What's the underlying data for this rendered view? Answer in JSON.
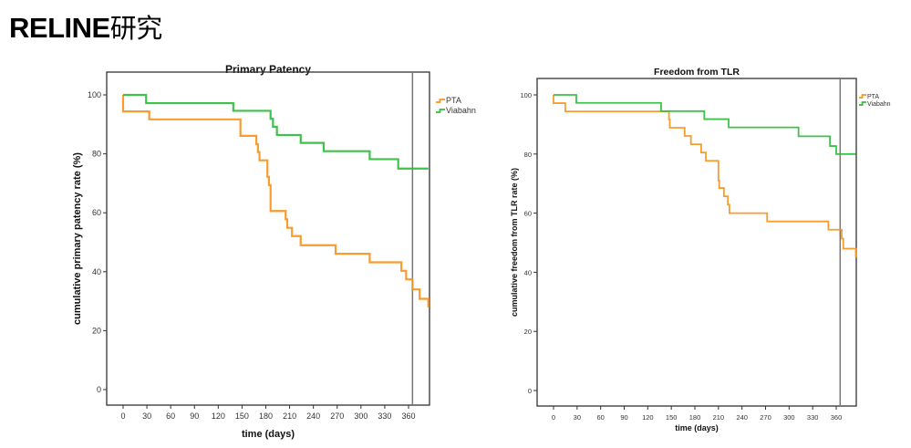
{
  "slide": {
    "title_latin": "RELINE",
    "title_cjk": "研究"
  },
  "colors": {
    "pta": "#f7941d",
    "viabahn": "#2ebd3a",
    "axis": "#333333",
    "reference_line": "#777777"
  },
  "chart_data": [
    {
      "type": "line",
      "subtype": "kaplan-meier step",
      "title": "Primary Patency",
      "xlabel": "time (days)",
      "ylabel": "cumulative primary patency rate (%)",
      "xlim": [
        -20,
        385
      ],
      "ylim": [
        -5,
        105
      ],
      "xticks": [
        0,
        30,
        60,
        90,
        120,
        150,
        180,
        210,
        240,
        270,
        300,
        330,
        360
      ],
      "yticks": [
        0,
        20,
        40,
        60,
        80,
        100
      ],
      "reference_line_x": 365,
      "grid": false,
      "legend": {
        "placement": "right-top",
        "entries": [
          "PTA",
          "Viabahn"
        ]
      },
      "series": [
        {
          "name": "PTA",
          "x": [
            0,
            0,
            33,
            148,
            168,
            170,
            172,
            182,
            184,
            186,
            205,
            207,
            213,
            224,
            268,
            311,
            351,
            357,
            365,
            374,
            385
          ],
          "y": [
            100,
            94.4,
            91.7,
            86.1,
            83.3,
            80.6,
            77.8,
            72.2,
            69.4,
            60.6,
            57.8,
            54.9,
            52.1,
            49.0,
            46.1,
            43.2,
            40.3,
            37.4,
            34.0,
            30.8,
            27.9
          ]
        },
        {
          "name": "Viabahn",
          "x": [
            0,
            29,
            139,
            186,
            189,
            194,
            224,
            253,
            311,
            347,
            385
          ],
          "y": [
            100,
            97.2,
            94.6,
            91.9,
            89.2,
            86.4,
            83.7,
            80.9,
            78.2,
            75.0,
            75.0
          ]
        }
      ]
    },
    {
      "type": "line",
      "subtype": "kaplan-meier step",
      "title": "Freedom from TLR",
      "xlabel": "time (days)",
      "ylabel": "cumulative freedom from TLR rate (%)",
      "xlim": [
        -20,
        385
      ],
      "ylim": [
        -5,
        105
      ],
      "xticks": [
        0,
        30,
        60,
        90,
        120,
        150,
        180,
        210,
        240,
        270,
        300,
        330,
        360
      ],
      "yticks": [
        0,
        20,
        40,
        60,
        80,
        100
      ],
      "reference_line_x": 365,
      "grid": false,
      "legend": {
        "placement": "right-top",
        "entries": [
          "PTA",
          "Viabahn"
        ]
      },
      "series": [
        {
          "name": "PTA",
          "x": [
            0,
            0,
            15,
            147,
            148,
            167,
            175,
            188,
            194,
            210,
            211,
            217,
            222,
            224,
            272,
            350,
            367,
            369,
            385
          ],
          "y": [
            100,
            97.2,
            94.4,
            91.7,
            88.9,
            86.1,
            83.3,
            80.5,
            77.7,
            71.0,
            68.5,
            65.7,
            62.9,
            60.0,
            57.2,
            54.4,
            51.4,
            48.0,
            45.0
          ]
        },
        {
          "name": "Viabahn",
          "x": [
            0,
            29,
            137,
            192,
            223,
            312,
            352,
            360,
            385
          ],
          "y": [
            100,
            97.3,
            94.5,
            91.8,
            89.0,
            86.0,
            82.7,
            80.0,
            80.0
          ]
        }
      ]
    }
  ]
}
